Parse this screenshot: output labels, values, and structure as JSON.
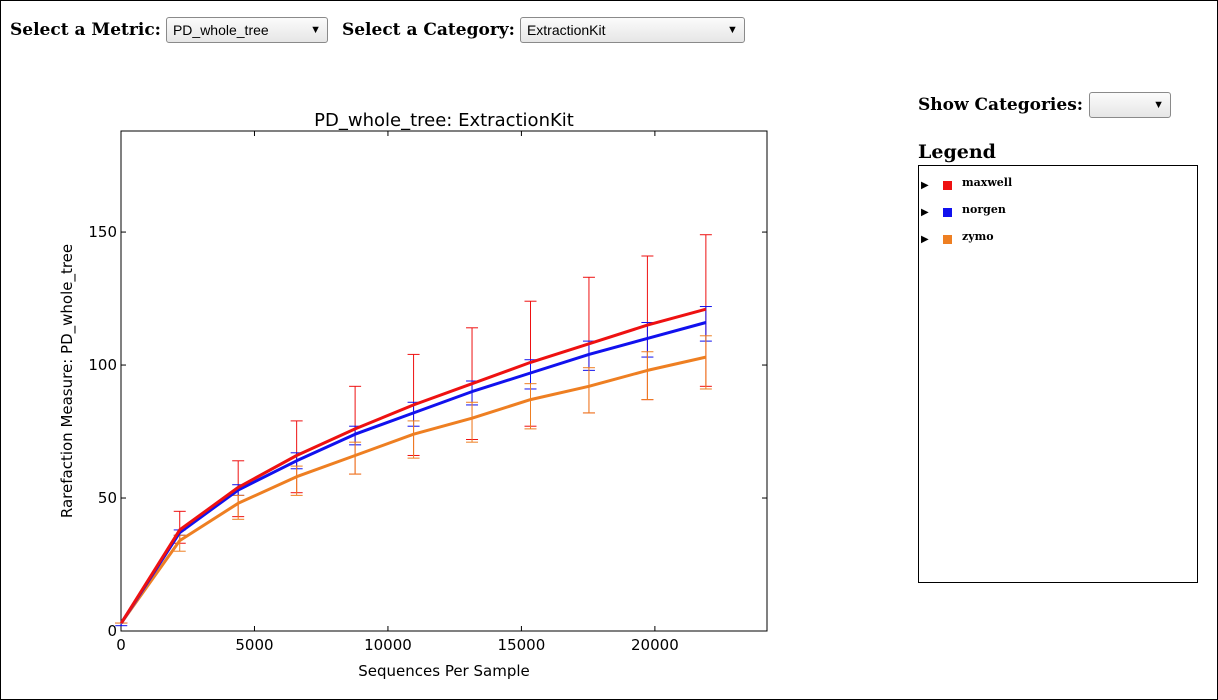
{
  "controls": {
    "metric_label": "Select a Metric:",
    "metric_value": "PD_whole_tree",
    "category_label": "Select a Category:",
    "category_value": "ExtractionKit",
    "show_categories_label": "Show Categories:",
    "show_categories_value": "",
    "arrow_glyph": "▼"
  },
  "legend": {
    "title": "Legend",
    "items": [
      {
        "name": "maxwell",
        "color": "#ee1111"
      },
      {
        "name": "norgen",
        "color": "#1111ee"
      },
      {
        "name": "zymo",
        "color": "#ee7f22"
      }
    ]
  },
  "chart_data": {
    "type": "line",
    "title": "PD_whole_tree: ExtractionKit",
    "xlabel": "Sequences Per Sample",
    "ylabel": "Rarefaction Measure: PD_whole_tree",
    "xlim": [
      0,
      24200
    ],
    "ylim": [
      0,
      188
    ],
    "xticks": [
      0,
      5000,
      10000,
      15000,
      20000
    ],
    "yticks": [
      0,
      50,
      100,
      150
    ],
    "x": [
      10,
      2200,
      4390,
      6580,
      8770,
      10960,
      13150,
      15340,
      17530,
      19720,
      21910
    ],
    "series": [
      {
        "name": "maxwell",
        "color": "#ee1111",
        "values": [
          3,
          38,
          54,
          66,
          76,
          85,
          93,
          101,
          108,
          115,
          121
        ],
        "err_low": [
          3,
          33,
          43,
          52,
          59,
          66,
          72,
          77,
          82,
          87,
          92
        ],
        "err_high": [
          3,
          45,
          64,
          79,
          92,
          104,
          114,
          124,
          133,
          141,
          149
        ]
      },
      {
        "name": "norgen",
        "color": "#1111ee",
        "values": [
          3,
          37,
          53,
          64,
          74,
          82,
          90,
          97,
          104,
          110,
          116
        ],
        "err_low": [
          2,
          36,
          51,
          61,
          70,
          77,
          85,
          91,
          98,
          103,
          109
        ],
        "err_high": [
          3,
          38,
          55,
          67,
          77,
          86,
          94,
          102,
          109,
          116,
          122
        ]
      },
      {
        "name": "zymo",
        "color": "#ee7f22",
        "values": [
          3,
          34,
          48,
          58,
          66,
          74,
          80,
          87,
          92,
          98,
          103
        ],
        "err_low": [
          3,
          30,
          42,
          51,
          59,
          65,
          71,
          76,
          82,
          87,
          91
        ],
        "err_high": [
          3,
          36,
          51,
          62,
          71,
          79,
          86,
          93,
          99,
          105,
          111
        ]
      }
    ]
  }
}
